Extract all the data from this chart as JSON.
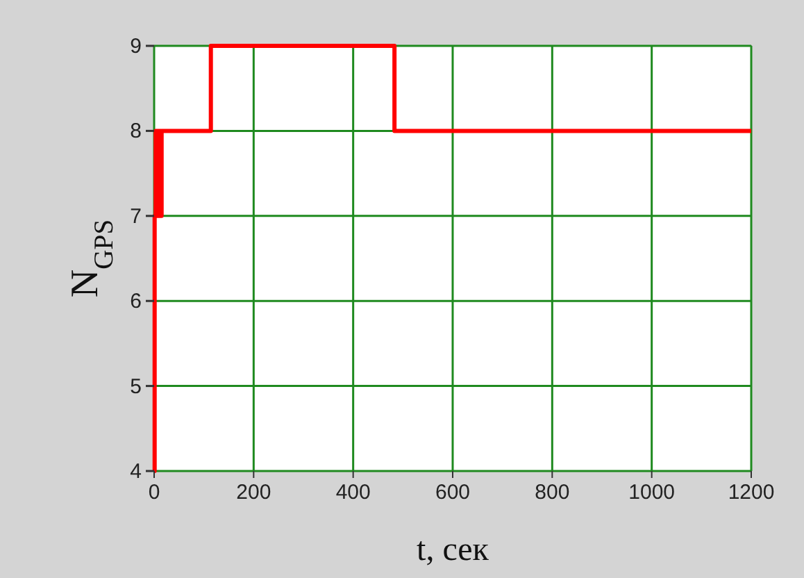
{
  "chart_data": {
    "type": "step",
    "xlabel": "t, сек",
    "ylabel": "N$_{GPS}$",
    "x": [
      0,
      1,
      3,
      5,
      7,
      9,
      11,
      13,
      15,
      114,
      483,
      1200
    ],
    "series": [
      {
        "color": "#ff0000",
        "values": [
          4,
          7,
          8,
          7,
          8,
          7,
          8,
          7,
          8,
          9,
          8,
          8
        ]
      }
    ],
    "xlim": [
      0,
      1200
    ],
    "xticks": [
      0,
      200,
      400,
      600,
      800,
      1000,
      1200
    ],
    "ylim": [
      4,
      9
    ],
    "yticks": [
      4,
      5,
      6,
      7,
      8,
      9
    ],
    "grid": true,
    "marker": "none",
    "line_style": "solid"
  }
}
